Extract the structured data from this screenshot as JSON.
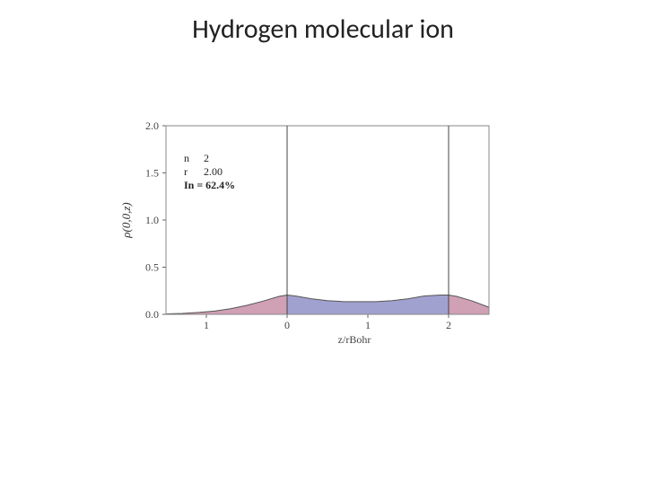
{
  "title": "Hydrogen molecular ion",
  "chart": {
    "type": "area",
    "background_color": "#ffffff",
    "plot_border_color": "#888888",
    "grid_color": "#888888",
    "xlabel": "z/rBohr",
    "ylabel": "ρ(0,0,z)",
    "label_fontsize": 12,
    "tick_fontsize": 12,
    "xlim": [
      -1.5,
      2.5
    ],
    "ylim": [
      0.0,
      2.0
    ],
    "xticks": [
      -1,
      0,
      1,
      2
    ],
    "xtick_labels": [
      "1",
      "0",
      "1",
      "2"
    ],
    "yticks": [
      0.0,
      0.5,
      1.0,
      1.5,
      2.0
    ],
    "vertical_lines": [
      0,
      2
    ],
    "vertical_line_color": "#444444",
    "axis_color": "#666666",
    "curve": {
      "x": [
        -1.5,
        -1.3,
        -1.1,
        -0.9,
        -0.7,
        -0.5,
        -0.3,
        -0.1,
        0.0,
        0.1,
        0.3,
        0.5,
        0.7,
        0.9,
        1.0,
        1.1,
        1.3,
        1.5,
        1.7,
        1.9,
        2.0,
        2.1,
        2.3,
        2.5
      ],
      "y": [
        0.005,
        0.01,
        0.02,
        0.035,
        0.06,
        0.095,
        0.14,
        0.19,
        0.205,
        0.195,
        0.165,
        0.145,
        0.135,
        0.135,
        0.135,
        0.135,
        0.145,
        0.165,
        0.195,
        0.205,
        0.205,
        0.19,
        0.14,
        0.075
      ]
    },
    "fill_center_color": "#9090c8",
    "fill_outer_color": "#c88fa8",
    "fill_opacity": 0.85,
    "annotation": {
      "lines": [
        {
          "label": "n",
          "value": "2"
        },
        {
          "label": "r",
          "value": "2.00"
        }
      ],
      "emphasis": {
        "label": "In =",
        "value": "62.4%"
      }
    }
  }
}
